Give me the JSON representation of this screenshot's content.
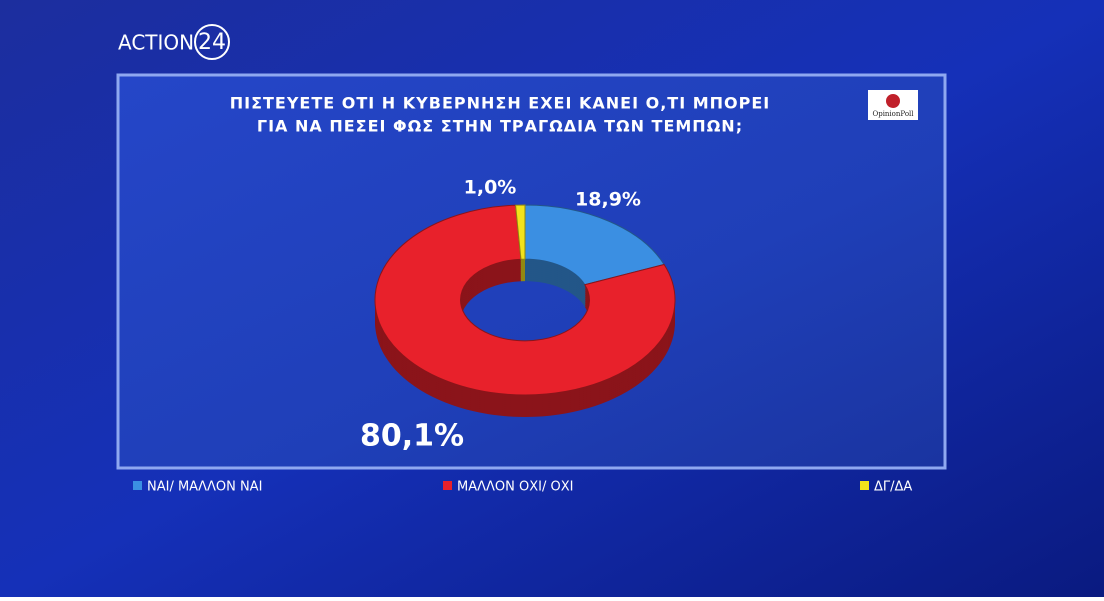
{
  "channel": {
    "name": "ACTION",
    "number": "24"
  },
  "pollster": "OpinionPoll",
  "chart_data": {
    "type": "pie",
    "title": [
      "ΠΙΣΤΕΥΕΤΕ ΟΤΙ Η ΚΥΒΕΡΝΗΣΗ ΕΧΕΙ ΚΑΝΕΙ Ο,ΤΙ ΜΠΟΡΕΙ",
      "ΓΙΑ ΝΑ ΠΕΣΕΙ ΦΩΣ ΣΤΗΝ ΤΡΑΓΩΔΙΑ ΤΩΝ ΤΕΜΠΩΝ;"
    ],
    "categories": [
      "ΝΑΙ/ ΜΑΛΛΟΝ ΝΑΙ",
      "ΜΑΛΛΟΝ ΟΧΙ/ ΟΧΙ",
      "ΔΓ/ΔΑ"
    ],
    "values": [
      18.9,
      80.1,
      1.0
    ],
    "value_labels": [
      "18,9%",
      "80,1%",
      "1,0%"
    ],
    "colors": [
      "#3b8fe2",
      "#e8212b",
      "#f3e21b"
    ],
    "donut": true
  }
}
